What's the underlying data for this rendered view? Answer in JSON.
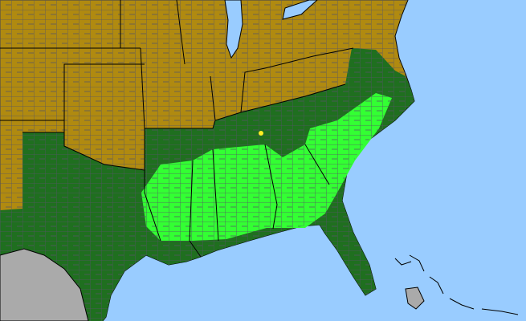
{
  "map": {
    "colors": {
      "ocean": "#99ccff",
      "not_present": "#b08a10",
      "present_state": "#1f6f1f",
      "present_county": "#33ff33",
      "other_county": "#ffee22",
      "outside_us": "#aaaaaa",
      "county_lines": "#555566",
      "state_lines": "#000000"
    }
  }
}
